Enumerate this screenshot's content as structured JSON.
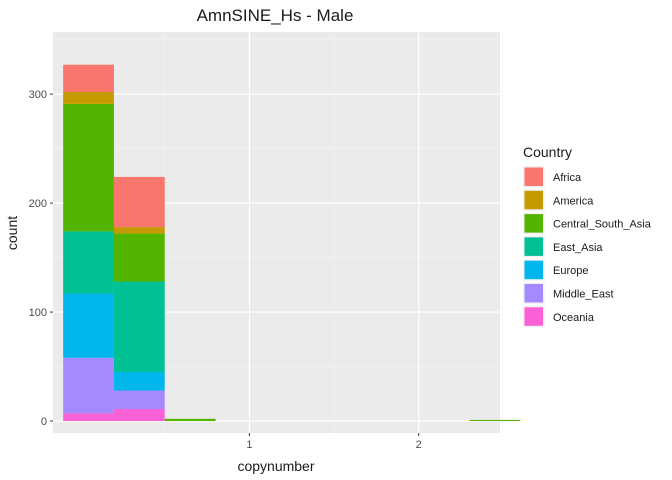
{
  "chart_data": {
    "type": "bar",
    "subtype": "stacked-histogram",
    "title": "AmnSINE_Hs - Male",
    "xlabel": "copynumber",
    "ylabel": "count",
    "xlim": [
      -0.16,
      2.48
    ],
    "ylim": [
      -11,
      357
    ],
    "x_ticks": [
      1,
      2
    ],
    "y_ticks": [
      0,
      100,
      200,
      300
    ],
    "grid": true,
    "legend_position": "right",
    "legend_title": "Country",
    "series_order": [
      "Africa",
      "America",
      "Central_South_Asia",
      "East_Asia",
      "Europe",
      "Middle_East",
      "Oceania"
    ],
    "colors": {
      "Africa": "#F8766D",
      "America": "#C49A00",
      "Central_South_Asia": "#53B400",
      "East_Asia": "#00C094",
      "Europe": "#00B6EB",
      "Middle_East": "#A58AFF",
      "Oceania": "#FB61D7"
    },
    "bins": [
      {
        "x0": -0.1,
        "x1": 0.2,
        "counts": {
          "Oceania": 7,
          "Middle_East": 51,
          "Europe": 59,
          "East_Asia": 57,
          "Central_South_Asia": 117,
          "America": 11,
          "Africa": 25
        }
      },
      {
        "x0": 0.2,
        "x1": 0.5,
        "counts": {
          "Oceania": 11,
          "Middle_East": 17,
          "Europe": 17,
          "East_Asia": 83,
          "Central_South_Asia": 44,
          "America": 6,
          "Africa": 46
        }
      },
      {
        "x0": 0.5,
        "x1": 0.8,
        "counts": {
          "Central_South_Asia": 2
        }
      },
      {
        "x0": 2.3,
        "x1": 2.6,
        "counts": {
          "Central_South_Asia": 1
        }
      }
    ]
  }
}
